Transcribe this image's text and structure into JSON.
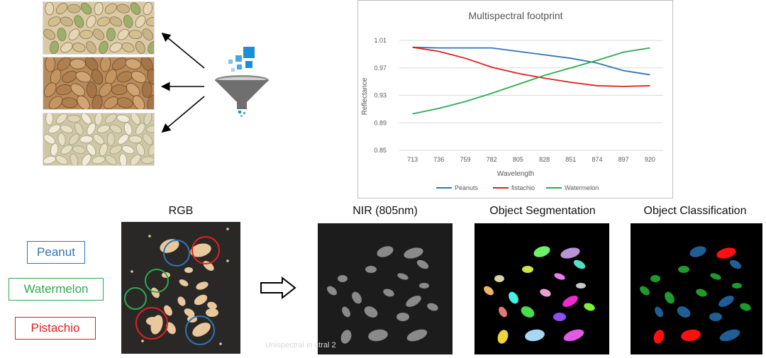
{
  "chart_data": {
    "type": "line",
    "title": "Multispectral footprint",
    "xlabel": "Wavelength",
    "ylabel": "Reflectance",
    "categories": [
      "713",
      "736",
      "759",
      "782",
      "805",
      "828",
      "851",
      "874",
      "897",
      "920"
    ],
    "ylim": [
      0.85,
      1.01
    ],
    "yticks": [
      "0.85",
      "0.89",
      "0.93",
      "0.97",
      "1.01"
    ],
    "grid": true,
    "legend_position": "bottom",
    "series": [
      {
        "name": "Peanuts",
        "color": "#2e75b6",
        "values": [
          1.0,
          0.999,
          0.999,
          0.999,
          0.994,
          0.989,
          0.984,
          0.977,
          0.966,
          0.96
        ]
      },
      {
        "name": "fistachio",
        "color": "#e02020",
        "values": [
          1.0,
          0.994,
          0.984,
          0.971,
          0.962,
          0.955,
          0.949,
          0.944,
          0.943,
          0.944
        ]
      },
      {
        "name": "Watermelon",
        "color": "#2eaa4f",
        "values": [
          0.903,
          0.911,
          0.921,
          0.933,
          0.946,
          0.959,
          0.97,
          0.981,
          0.993,
          0.999
        ]
      }
    ]
  },
  "legend_labels": {
    "peanut": "Peanut",
    "watermelon": "Watermelon",
    "pistachio": "Pistachio"
  },
  "colors": {
    "peanut": "#2e75b6",
    "watermelon": "#2eaa4f",
    "pistachio": "#e02020"
  },
  "panels": {
    "rgb": "RGB",
    "nir": "NIR (805nm)",
    "segmentation": "Object Segmentation",
    "classification": "Object Classification"
  },
  "watermark": "Unispectral in                                                     ctral 2",
  "icons": [
    "arrow-icon",
    "funnel-icon",
    "right-arrow-icon"
  ]
}
